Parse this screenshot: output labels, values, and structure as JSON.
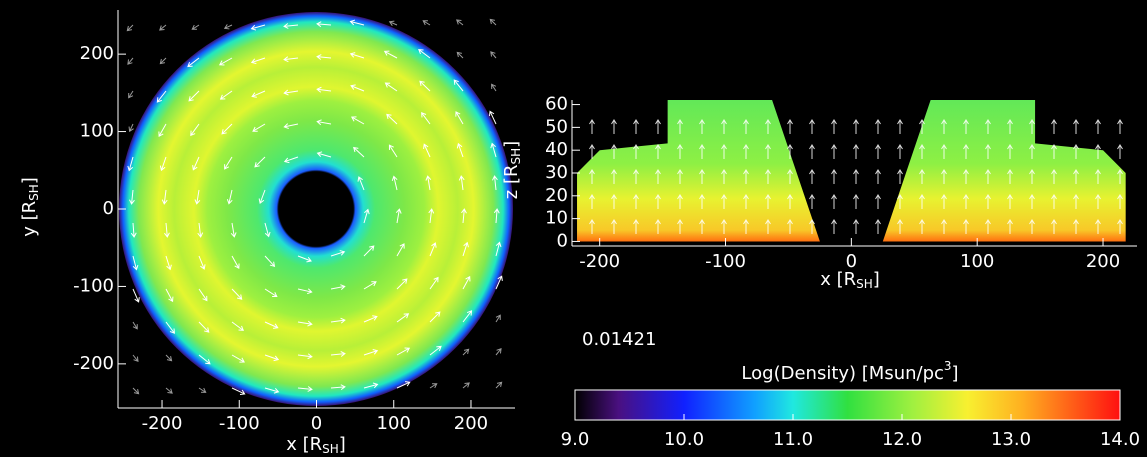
{
  "chart_data": [
    {
      "type": "heatmap",
      "xlabel": [
        "x [R",
        "SH",
        "]"
      ],
      "ylabel": [
        "y [R",
        "SH",
        "]"
      ],
      "xlim": [
        -257,
        257
      ],
      "ylim": [
        -257,
        257
      ],
      "xticks": [
        -200,
        -100,
        0,
        100,
        200
      ],
      "yticks": [
        -200,
        -100,
        0,
        100,
        200
      ]
    },
    {
      "type": "heatmap",
      "xlabel": [
        "x [R",
        "SH",
        "]"
      ],
      "ylabel": [
        "z [R",
        "SH",
        "]"
      ],
      "xlim": [
        -222,
        227
      ],
      "ylim": [
        -2,
        62
      ],
      "xticks": [
        -200,
        -100,
        0,
        100,
        200
      ],
      "yticks": [
        0,
        10,
        20,
        30,
        40,
        50,
        60
      ]
    },
    {
      "type": "colorbar",
      "annotation": "0.01421",
      "title": [
        "Log(Density)  [Msun/pc",
        "3",
        "]"
      ],
      "xlim": [
        9,
        14
      ],
      "xticks": [
        {
          "value": 9,
          "label": "9.0"
        },
        {
          "value": 10,
          "label": "10.0"
        },
        {
          "value": 11,
          "label": "11.0"
        },
        {
          "value": 12,
          "label": "12.0"
        },
        {
          "value": 13,
          "label": "13.0"
        },
        {
          "value": 14,
          "label": "14.0"
        }
      ]
    }
  ]
}
